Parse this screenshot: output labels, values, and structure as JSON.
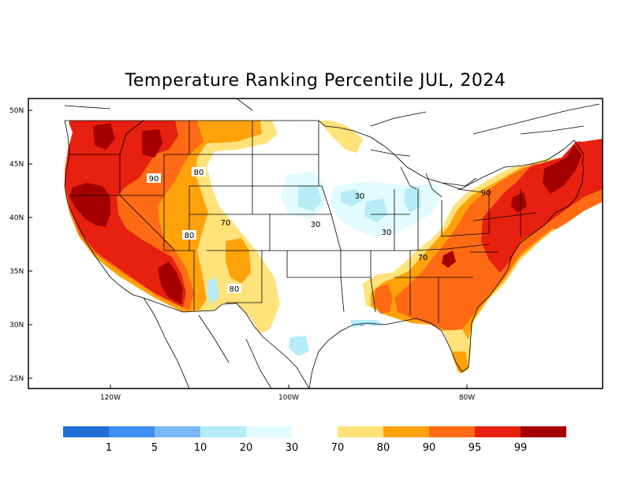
{
  "title": "Temperature Ranking Percentile JUL, 2024",
  "lat_labels": [
    "50N",
    "45N",
    "40N",
    "35N",
    "30N",
    "25N"
  ],
  "lon_labels": [
    "120W",
    "100W",
    "80W"
  ],
  "contour_labels": [
    "90",
    "80",
    "80",
    "70",
    "80",
    "30",
    "30",
    "30",
    "70",
    "90"
  ],
  "legend": {
    "colors": [
      "#1f6fd6",
      "#3d8ff0",
      "#7ab8f5",
      "#b5ecf7",
      "#e2fbff",
      "#ffe27a",
      "#ffa20a",
      "#ff6a14",
      "#e8200f",
      "#a50000"
    ],
    "labels": [
      "1",
      "5",
      "10",
      "20",
      "30",
      "70",
      "80",
      "90",
      "95",
      "99"
    ]
  },
  "colors": {
    "p99": "#a50000",
    "p95": "#e8200f",
    "p90": "#ff6a14",
    "p80": "#ffa20a",
    "p70": "#ffe27a",
    "p30": "#e2fbff",
    "p20": "#b5ecf7",
    "p10": "#7ab8f5",
    "p5": "#3d8ff0",
    "p1": "#1f6fd6"
  }
}
